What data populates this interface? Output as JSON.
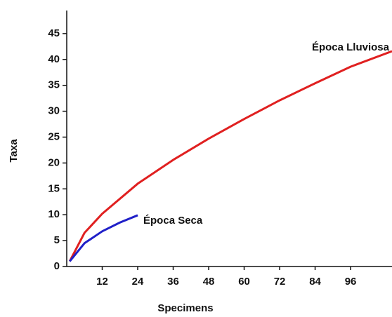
{
  "chart_data": {
    "type": "line",
    "x_label": "Specimens",
    "y_label": "Taxa",
    "series": [
      {
        "name": "Época Lluviosa",
        "color": "#e02020",
        "x": [
          1,
          6,
          12,
          24,
          36,
          48,
          60,
          72,
          84,
          96,
          110
        ],
        "values": [
          1,
          6.5,
          10.2,
          16,
          20.6,
          24.7,
          28.5,
          32.1,
          35.4,
          38.6,
          41.6
        ]
      },
      {
        "name": "Época Seca",
        "color": "#2020c8",
        "x": [
          1,
          6,
          12,
          18,
          24
        ],
        "values": [
          1,
          4.5,
          6.8,
          8.5,
          9.9
        ]
      }
    ],
    "xlim": [
      0,
      110
    ],
    "xticks": [
      12,
      24,
      36,
      48,
      60,
      72,
      84,
      96
    ],
    "ylim": [
      0,
      50
    ],
    "yticks": [
      0,
      5,
      10,
      15,
      20,
      25,
      30,
      35,
      40,
      45
    ]
  }
}
